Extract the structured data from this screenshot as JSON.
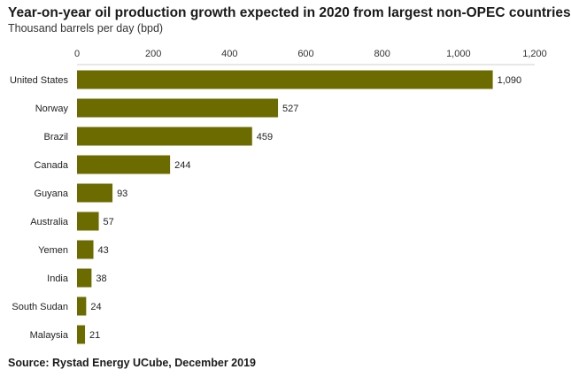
{
  "header": {
    "title": "Year-on-year oil production growth expected in 2020 from largest non-OPEC countries",
    "subtitle": "Thousand barrels per day (bpd)"
  },
  "footer": {
    "source": "Source: Rystad Energy UCube, December 2019"
  },
  "colors": {
    "bar": "#6b6b00",
    "axis": "#cfcfcf"
  },
  "chart_data": {
    "type": "bar",
    "orientation": "horizontal",
    "title": "Year-on-year oil production growth expected in 2020 from largest non-OPEC countries",
    "subtitle": "Thousand barrels per day (bpd)",
    "xlabel": "",
    "ylabel": "",
    "xlim": [
      0,
      1200
    ],
    "ticks": [
      0,
      200,
      400,
      600,
      800,
      1000,
      1200
    ],
    "tick_labels": [
      "0",
      "200",
      "400",
      "600",
      "800",
      "1,000",
      "1,200"
    ],
    "tick_position": "top",
    "grid": false,
    "legend": "none",
    "categories": [
      "United States",
      "Norway",
      "Brazil",
      "Canada",
      "Guyana",
      "Australia",
      "Yemen",
      "India",
      "South Sudan",
      "Malaysia"
    ],
    "values": [
      1090,
      527,
      459,
      244,
      93,
      57,
      43,
      38,
      24,
      21
    ],
    "value_labels": [
      "1,090",
      "527",
      "459",
      "244",
      "93",
      "57",
      "43",
      "38",
      "24",
      "21"
    ]
  }
}
